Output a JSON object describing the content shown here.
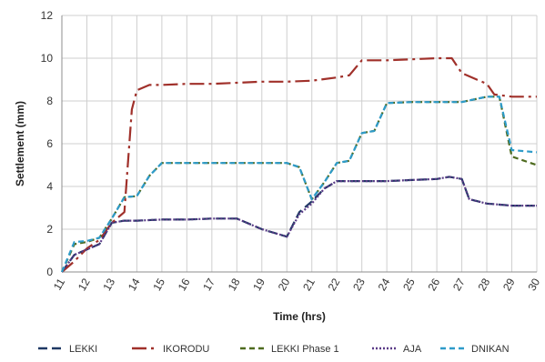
{
  "chart_data": {
    "type": "line",
    "title": "",
    "xlabel": "Time (hrs)",
    "ylabel": "Settlement (mm)",
    "xlim": [
      11,
      30
    ],
    "ylim": [
      0,
      12
    ],
    "xticks": [
      11,
      12,
      13,
      14,
      15,
      16,
      17,
      18,
      19,
      20,
      21,
      22,
      23,
      24,
      25,
      26,
      27,
      28,
      29,
      30
    ],
    "yticks": [
      0,
      2,
      4,
      6,
      8,
      10,
      12
    ],
    "grid": true,
    "legend_position": "bottom",
    "series": [
      {
        "name": "LEKKI",
        "color": "#1f3864",
        "dash": "long-dash",
        "points": [
          [
            11,
            0
          ],
          [
            11.5,
            0.8
          ],
          [
            12.5,
            1.3
          ],
          [
            13,
            2.3
          ],
          [
            13.5,
            2.4
          ],
          [
            14,
            2.4
          ],
          [
            15,
            2.45
          ],
          [
            16,
            2.45
          ],
          [
            17,
            2.5
          ],
          [
            18,
            2.5
          ],
          [
            19,
            2.0
          ],
          [
            20,
            1.65
          ],
          [
            20.5,
            2.8
          ],
          [
            21,
            3.3
          ],
          [
            21.5,
            3.9
          ],
          [
            22,
            4.25
          ],
          [
            23,
            4.25
          ],
          [
            24,
            4.25
          ],
          [
            25,
            4.3
          ],
          [
            26,
            4.35
          ],
          [
            26.5,
            4.45
          ],
          [
            27,
            4.35
          ],
          [
            27.3,
            3.4
          ],
          [
            28,
            3.2
          ],
          [
            29,
            3.1
          ],
          [
            30,
            3.1
          ]
        ]
      },
      {
        "name": "IKORODU",
        "color": "#a0302a",
        "dash": "dash-dot",
        "points": [
          [
            11,
            0
          ],
          [
            11.5,
            0.5
          ],
          [
            12,
            1.1
          ],
          [
            12.5,
            1.5
          ],
          [
            13,
            2.3
          ],
          [
            13.5,
            2.8
          ],
          [
            13.8,
            7.6
          ],
          [
            14,
            8.5
          ],
          [
            14.5,
            8.75
          ],
          [
            15,
            8.75
          ],
          [
            16,
            8.8
          ],
          [
            17,
            8.8
          ],
          [
            18,
            8.85
          ],
          [
            19,
            8.9
          ],
          [
            20,
            8.9
          ],
          [
            21,
            8.95
          ],
          [
            22,
            9.1
          ],
          [
            22.5,
            9.2
          ],
          [
            23,
            9.9
          ],
          [
            24,
            9.9
          ],
          [
            25,
            9.95
          ],
          [
            26,
            10.0
          ],
          [
            26.6,
            10.0
          ],
          [
            27,
            9.3
          ],
          [
            28,
            8.8
          ],
          [
            28.3,
            8.3
          ],
          [
            29,
            8.2
          ],
          [
            30,
            8.2
          ]
        ]
      },
      {
        "name": "LEKKI Phase 1",
        "color": "#4e6b1f",
        "dash": "dash",
        "points": [
          [
            11,
            0
          ],
          [
            11.5,
            1.3
          ],
          [
            12,
            1.4
          ],
          [
            12.5,
            1.6
          ],
          [
            13,
            2.5
          ],
          [
            13.5,
            3.5
          ],
          [
            14,
            3.55
          ],
          [
            14.5,
            4.5
          ],
          [
            15,
            5.1
          ],
          [
            16,
            5.1
          ],
          [
            17,
            5.1
          ],
          [
            18,
            5.1
          ],
          [
            19,
            5.1
          ],
          [
            20,
            5.1
          ],
          [
            20.5,
            4.9
          ],
          [
            21,
            3.4
          ],
          [
            21.5,
            4.2
          ],
          [
            22,
            5.1
          ],
          [
            22.5,
            5.2
          ],
          [
            23,
            6.5
          ],
          [
            23.5,
            6.6
          ],
          [
            24,
            7.9
          ],
          [
            25,
            7.95
          ],
          [
            26,
            7.95
          ],
          [
            27,
            7.95
          ],
          [
            28,
            8.2
          ],
          [
            28.5,
            8.2
          ],
          [
            29,
            5.4
          ],
          [
            30,
            5.0
          ]
        ]
      },
      {
        "name": "AJA",
        "color": "#5a3a87",
        "dash": "dot",
        "points": [
          [
            11,
            0
          ],
          [
            11.5,
            0.8
          ],
          [
            12.5,
            1.3
          ],
          [
            13,
            2.3
          ],
          [
            13.5,
            2.4
          ],
          [
            14,
            2.4
          ],
          [
            15,
            2.45
          ],
          [
            16,
            2.45
          ],
          [
            17,
            2.5
          ],
          [
            18,
            2.5
          ],
          [
            19,
            2.0
          ],
          [
            20,
            1.65
          ],
          [
            20.5,
            2.7
          ],
          [
            21,
            3.2
          ],
          [
            21.5,
            3.9
          ],
          [
            22,
            4.25
          ],
          [
            23,
            4.25
          ],
          [
            24,
            4.25
          ],
          [
            25,
            4.3
          ],
          [
            26,
            4.35
          ],
          [
            26.5,
            4.45
          ],
          [
            27,
            4.35
          ],
          [
            27.3,
            3.4
          ],
          [
            28,
            3.2
          ],
          [
            29,
            3.1
          ],
          [
            30,
            3.1
          ]
        ]
      },
      {
        "name": "DNIKAN",
        "color": "#2e9bc9",
        "dash": "dash",
        "points": [
          [
            11,
            0
          ],
          [
            11.5,
            1.4
          ],
          [
            12,
            1.45
          ],
          [
            12.5,
            1.6
          ],
          [
            13,
            2.5
          ],
          [
            13.5,
            3.5
          ],
          [
            14,
            3.55
          ],
          [
            14.5,
            4.5
          ],
          [
            15,
            5.1
          ],
          [
            16,
            5.1
          ],
          [
            17,
            5.1
          ],
          [
            18,
            5.1
          ],
          [
            19,
            5.1
          ],
          [
            20,
            5.1
          ],
          [
            20.5,
            4.9
          ],
          [
            21,
            3.4
          ],
          [
            21.5,
            4.2
          ],
          [
            22,
            5.1
          ],
          [
            22.5,
            5.2
          ],
          [
            23,
            6.5
          ],
          [
            23.5,
            6.6
          ],
          [
            24,
            7.9
          ],
          [
            25,
            7.95
          ],
          [
            26,
            7.95
          ],
          [
            27,
            7.95
          ],
          [
            28,
            8.2
          ],
          [
            28.5,
            8.2
          ],
          [
            29,
            5.7
          ],
          [
            30,
            5.6
          ]
        ]
      }
    ]
  }
}
